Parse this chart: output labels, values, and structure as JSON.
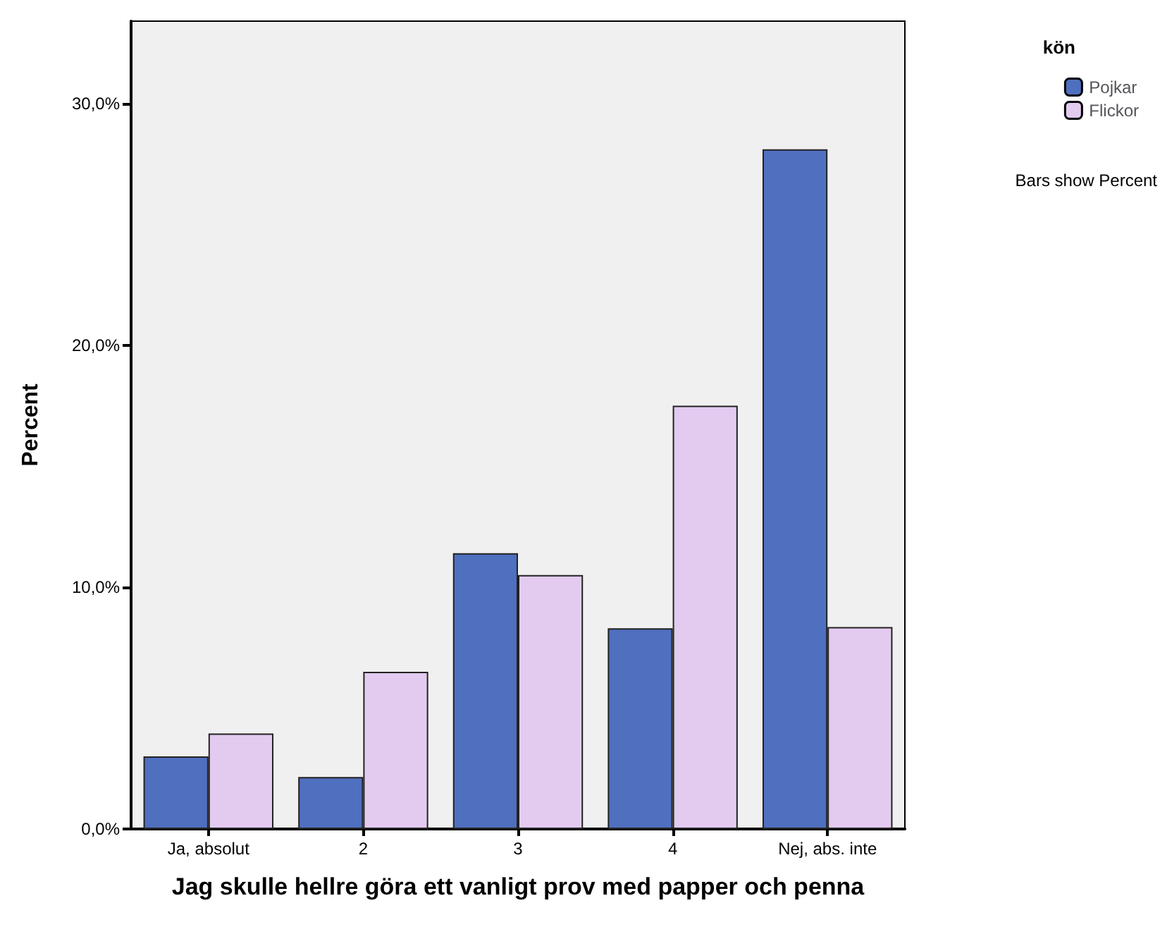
{
  "chart_data": {
    "type": "bar",
    "xlabel": "Jag skulle hellre göra ett vanligt prov med papper och penna",
    "ylabel": "Percent",
    "legend_title": "kön",
    "categories": [
      "Ja, absolut",
      "2",
      "3",
      "4",
      "Nej, abs. inte"
    ],
    "series": [
      {
        "name": "Pojkar",
        "color": "#4f6fbf",
        "values": [
          3.0,
          2.15,
          11.4,
          8.3,
          28.1
        ]
      },
      {
        "name": "Flickor",
        "color": "#e3cbef",
        "values": [
          3.95,
          6.5,
          10.5,
          17.5,
          8.35
        ]
      }
    ],
    "ylim": [
      0,
      33.4
    ],
    "yticks": [
      {
        "value": 0,
        "label": "0,0%"
      },
      {
        "value": 10,
        "label": "10,0%"
      },
      {
        "value": 20,
        "label": "20,0%"
      },
      {
        "value": 30,
        "label": "30,0%"
      }
    ],
    "grid": false,
    "legend": "top right",
    "annotations": [
      "Bars show Percent"
    ]
  }
}
